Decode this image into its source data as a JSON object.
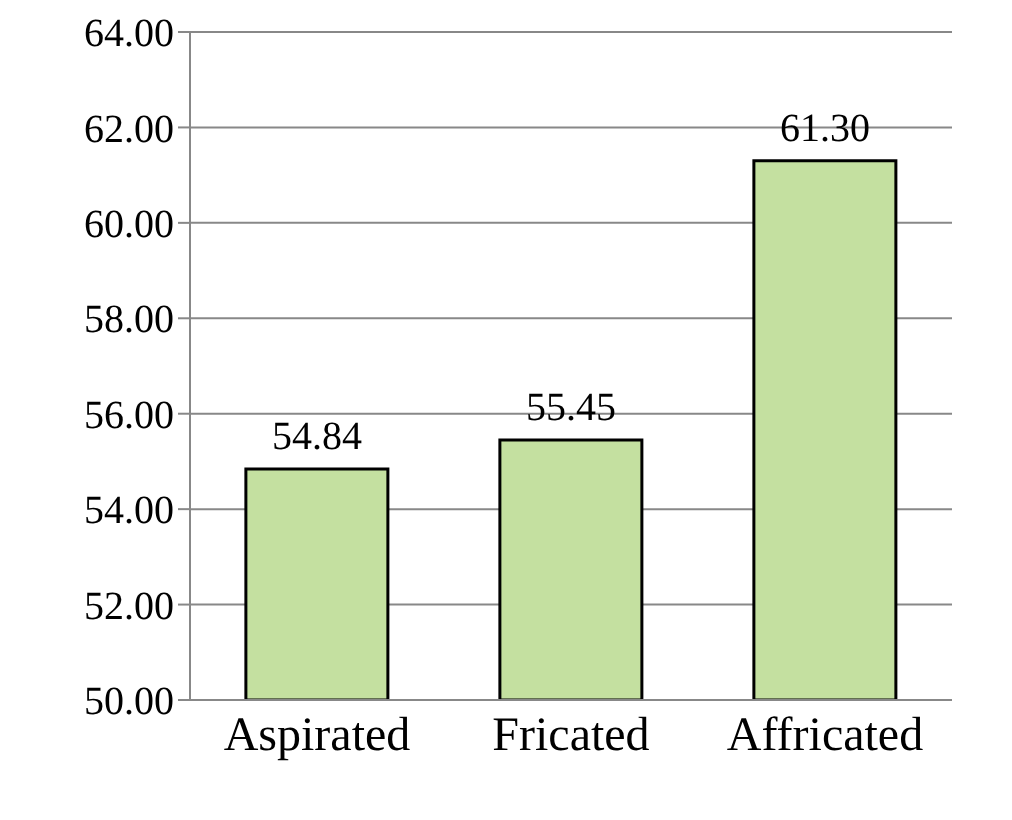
{
  "chart_data": {
    "type": "bar",
    "categories": [
      "Aspirated",
      "Fricated",
      "Affricated"
    ],
    "values": [
      54.84,
      55.45,
      61.3
    ],
    "color": "#c4e0a0",
    "ylim": [
      50,
      64
    ],
    "yticks": [
      {
        "value": 50,
        "label": "50.00"
      },
      {
        "value": 52,
        "label": "52.00"
      },
      {
        "value": 54,
        "label": "54.00"
      },
      {
        "value": 56,
        "label": "56.00"
      },
      {
        "value": 58,
        "label": "58.00"
      },
      {
        "value": 60,
        "label": "60.00"
      },
      {
        "value": 62,
        "label": "62.00"
      },
      {
        "value": 64,
        "label": "64.00"
      }
    ],
    "grid": "y",
    "value_labels": [
      "54.84",
      "55.45",
      "61.30"
    ]
  }
}
